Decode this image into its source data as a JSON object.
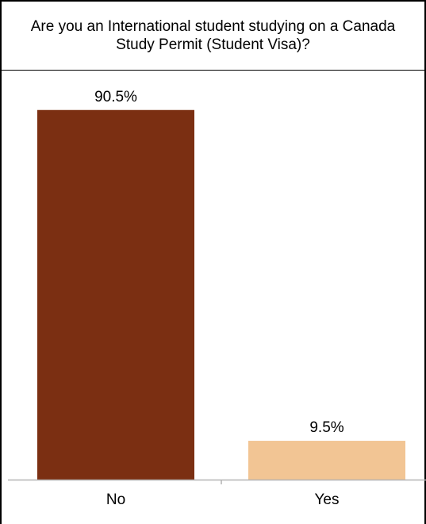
{
  "chart_data": {
    "type": "bar",
    "title": "Are you an International student studying on a Canada Study Permit (Student Visa)?",
    "categories": [
      "No",
      "Yes"
    ],
    "values": [
      90.5,
      9.5
    ],
    "value_labels": [
      "90.5%",
      "9.5%"
    ],
    "unit": "%",
    "ylim": [
      0,
      100
    ],
    "grid": false,
    "legend": "none",
    "colors": [
      "#7b2f12",
      "#f2c594"
    ]
  }
}
